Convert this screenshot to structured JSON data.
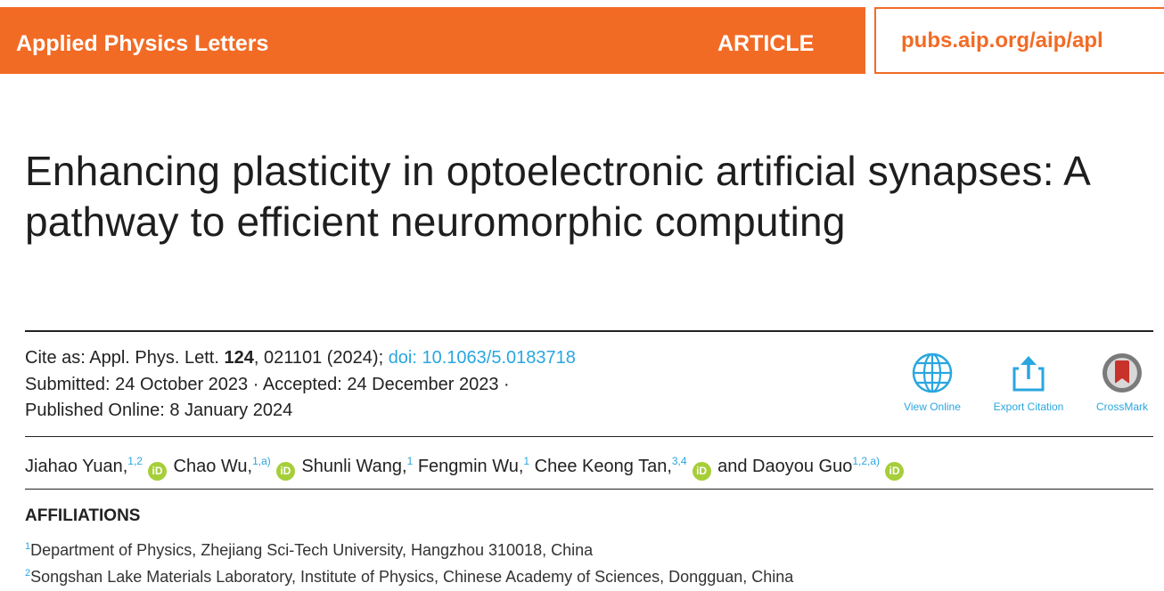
{
  "header": {
    "journal": "Applied Physics Letters",
    "article_type": "ARTICLE",
    "url": "pubs.aip.org/aip/apl",
    "accent_color": "#f26b25"
  },
  "title": "Enhancing plasticity in optoelectronic artificial synapses: A pathway to efficient neuromorphic computing",
  "citation": {
    "cite_prefix": "Cite as: Appl. Phys. Lett. ",
    "volume": "124",
    "cite_suffix": ", 021101 (2024); ",
    "doi": "doi: 10.1063/5.0183718",
    "submitted": "Submitted: 24 October 2023 · Accepted: 24 December 2023 ·",
    "published": "Published Online: 8 January 2024"
  },
  "actions": {
    "view_online": "View Online",
    "export_citation": "Export Citation",
    "crossmark": "CrossMark",
    "link_color": "#2aa6e0"
  },
  "authors": [
    {
      "name": "Jiahao Yuan,",
      "sup": "1,2"
    },
    {
      "name": "Chao Wu,",
      "sup": "1,a)"
    },
    {
      "name": "Shunli Wang,",
      "sup": "1"
    },
    {
      "name": "Fengmin Wu,",
      "sup": "1"
    },
    {
      "name": "Chee Keong Tan,",
      "sup": "3,4"
    },
    {
      "name": "and Daoyou Guo",
      "sup": "1,2,a)"
    }
  ],
  "orcid_label": "iD",
  "affiliations": {
    "heading": "AFFILIATIONS",
    "items": [
      {
        "num": "1",
        "text": "Department of Physics, Zhejiang Sci-Tech University, Hangzhou 310018, China"
      },
      {
        "num": "2",
        "text": "Songshan Lake Materials Laboratory, Institute of Physics, Chinese Academy of Sciences, Dongguan, China"
      }
    ]
  }
}
